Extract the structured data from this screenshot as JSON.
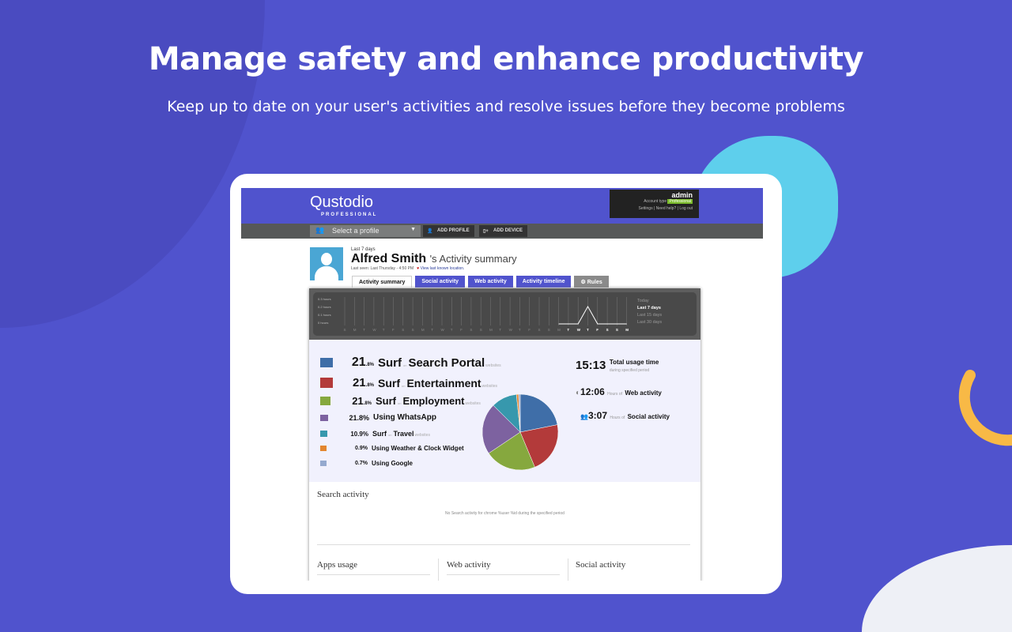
{
  "hero": {
    "title": "Manage safety and enhance productivity",
    "subtitle": "Keep up to date on your user's activities and resolve issues before they become problems"
  },
  "colors": {
    "background": "#5053cd",
    "accent": "#5053cd",
    "blob_cyan": "#5ecfec",
    "arc_yellow": "#f8b946"
  },
  "app": {
    "logo": "Qustodio",
    "logo_sub": "PROFESSIONAL",
    "account": {
      "user": "admin",
      "type_label": "Account type",
      "type": "Professional",
      "links": [
        "Settings",
        "Need help?",
        "Log out"
      ]
    },
    "toolbar": {
      "select_profile": "Select a profile",
      "add_profile": "ADD PROFILE",
      "add_device": "ADD DEVICE"
    },
    "profile": {
      "period": "Last 7 days",
      "name": "Alfred Smith",
      "title_suffix": "'s Activity summary",
      "last_seen": "Last seen: Last Thursday - 4:50 PM",
      "location_link": "View last known location."
    },
    "tabs": [
      {
        "label": "Activity summary",
        "active": true
      },
      {
        "label": "Social activity"
      },
      {
        "label": "Web activity"
      },
      {
        "label": "Activity timeline"
      },
      {
        "label": "Rules"
      }
    ],
    "timeline": {
      "y_labels": [
        "0.3 hours",
        "0.2 hours",
        "0.1 hours",
        "0 hours"
      ],
      "days": [
        "S",
        "M",
        "T",
        "W",
        "T",
        "F",
        "S",
        "S",
        "M",
        "T",
        "W",
        "T",
        "F",
        "S",
        "S",
        "M",
        "T",
        "W",
        "T",
        "F",
        "S",
        "S",
        "M",
        "T",
        "W",
        "T",
        "F",
        "S",
        "S",
        "M"
      ],
      "last7_values": [
        0,
        0,
        0.22,
        0,
        0,
        0,
        0
      ],
      "ranges": [
        {
          "label": "Today"
        },
        {
          "label": "Last 7 days",
          "active": true
        },
        {
          "label": "Last 15 days"
        },
        {
          "label": "Last 30 days"
        }
      ]
    },
    "breakdown": [
      {
        "pct": "21",
        "dec": ".8%",
        "verb": "Surf",
        "on": "on",
        "what": "Search Portal",
        "suffix": "websites",
        "color": "#3f6ea8",
        "value": 21.8
      },
      {
        "pct": "21",
        "dec": ".8%",
        "verb": "Surf",
        "on": "on",
        "what": "Entertainment",
        "suffix": "websites",
        "color": "#b33a3a",
        "value": 21.8
      },
      {
        "pct": "21",
        "dec": ".8%",
        "verb": "Surf",
        "on": "on",
        "what": "Employment",
        "suffix": "websites",
        "color": "#86a83e",
        "value": 21.8
      },
      {
        "pct": "21.8%",
        "verb": "Using WhatsApp",
        "color": "#7d62a0",
        "value": 21.8
      },
      {
        "pct": "10.9%",
        "verb": "Surf",
        "on": "on",
        "what": "Travel",
        "suffix": "websites",
        "color": "#3798ad",
        "value": 10.9
      },
      {
        "pct": "0.9%",
        "verb": "Using Weather & Clock Widget",
        "color": "#e3862f",
        "value": 0.9
      },
      {
        "pct": "0.7%",
        "verb": "Using Google",
        "color": "#95a9cf",
        "value": 0.7
      }
    ],
    "stats": {
      "total": "15:13",
      "total_label": "Total usage time",
      "total_sub": "during specified period",
      "web": "12:06",
      "web_pre": "Hours of",
      "web_label": "Web activity",
      "social": "3:07",
      "social_pre": "Hours of",
      "social_label": "Social activity"
    },
    "search": {
      "title": "Search activity",
      "empty": "No Search activity for chrome %user %id during the specified period"
    },
    "sections": [
      "Apps usage",
      "Web activity",
      "Social activity"
    ]
  }
}
